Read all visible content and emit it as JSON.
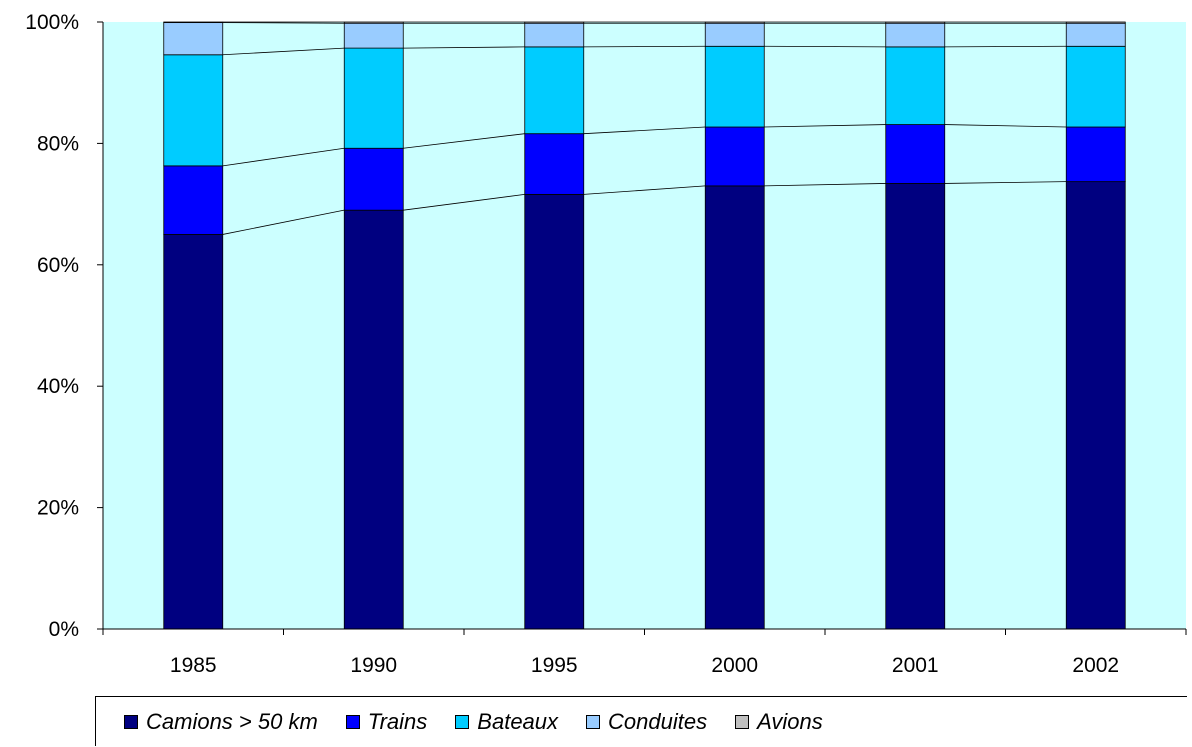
{
  "colors": {
    "plot_background": "#ccffff",
    "axis": "#000000",
    "series": [
      "#000080",
      "#0000ff",
      "#00ccff",
      "#99ccff",
      "#c0c0c0"
    ]
  },
  "chart_data": {
    "type": "bar",
    "stacked": true,
    "normalized": "100%",
    "categories": [
      "1985",
      "1990",
      "1995",
      "2000",
      "2001",
      "2002"
    ],
    "ylim": [
      0,
      100
    ],
    "yticks": [
      "0%",
      "20%",
      "40%",
      "60%",
      "80%",
      "100%"
    ],
    "series_lines": true,
    "grid": false,
    "legend_position": "bottom",
    "series": [
      {
        "name": "Camions > 50 km",
        "values": [
          65.0,
          69.0,
          71.6,
          73.0,
          73.4,
          73.7
        ]
      },
      {
        "name": "Trains",
        "values": [
          11.3,
          10.2,
          10.0,
          9.7,
          9.7,
          9.0
        ]
      },
      {
        "name": "Bateaux",
        "values": [
          18.3,
          16.5,
          14.3,
          13.3,
          12.8,
          13.3
        ]
      },
      {
        "name": "Conduites",
        "values": [
          5.3,
          4.1,
          3.9,
          3.8,
          3.9,
          3.8
        ]
      },
      {
        "name": "Avions",
        "values": [
          0.1,
          0.2,
          0.2,
          0.2,
          0.2,
          0.2
        ]
      }
    ]
  }
}
